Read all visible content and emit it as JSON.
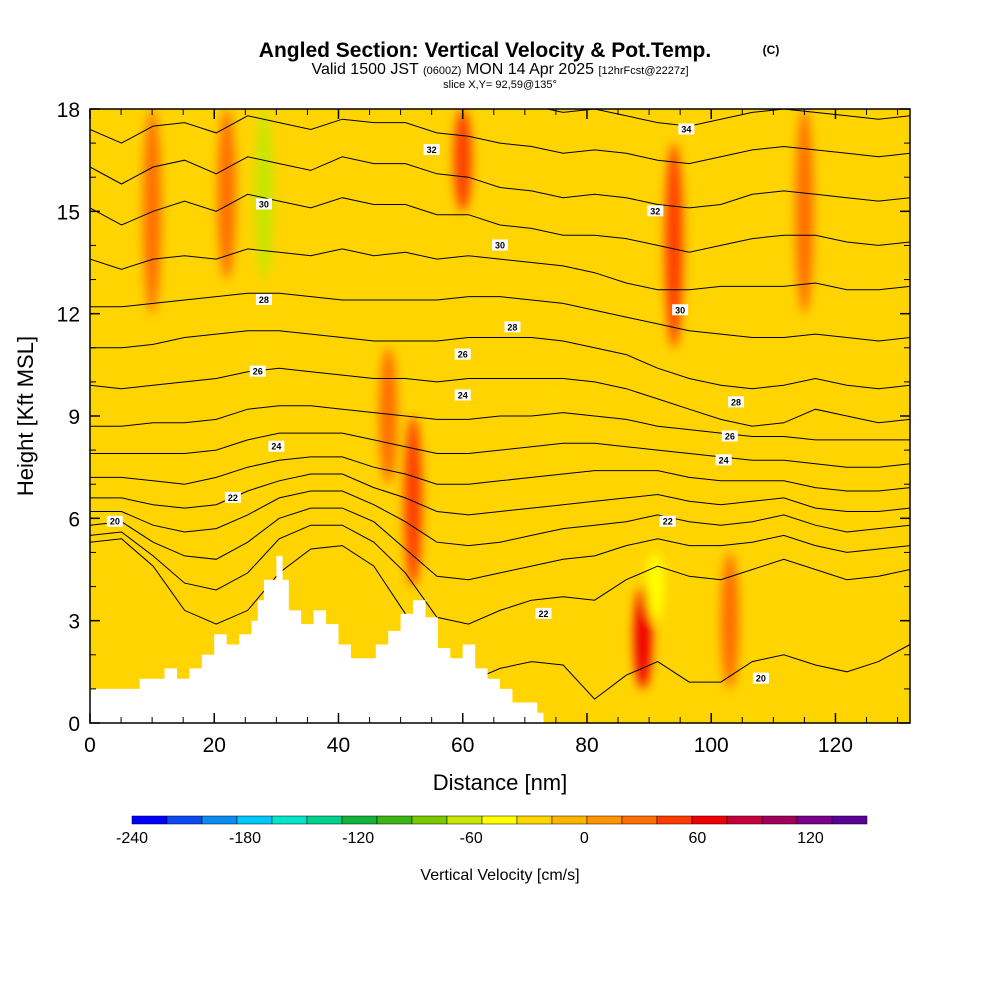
{
  "title": {
    "main": "Angled Section: Vertical Velocity & Pot.Temp.",
    "main_unit": "(C)",
    "valid_prefix": "Valid 1500 JST",
    "valid_utc": "(0600Z)",
    "valid_date": "MON 14 Apr 2025",
    "forecast": "[12hrFcst@2227z]",
    "slice": "slice X,Y= 92,59@135°"
  },
  "chart_data": {
    "type": "heatmap",
    "xlabel": "Distance [nm]",
    "ylabel": "Height [Kft MSL]",
    "xlim": [
      0,
      132
    ],
    "ylim": [
      0,
      18
    ],
    "x_ticks": [
      "0",
      "20",
      "40",
      "60",
      "80",
      "100",
      "120"
    ],
    "y_ticks": [
      "0",
      "3",
      "6",
      "9",
      "12",
      "15",
      "18"
    ],
    "colorbar": {
      "title": "Vertical Velocity [cm/s]",
      "range": [
        -240,
        150
      ],
      "step": 20,
      "tick_labels": [
        "-240",
        "-180",
        "-120",
        "-60",
        "0",
        "60",
        "120"
      ],
      "colors": [
        "#0000ff",
        "#0a4af5",
        "#0a8cf0",
        "#00c8ff",
        "#00e6c8",
        "#00d28c",
        "#14b43c",
        "#3cb414",
        "#78c800",
        "#c8e600",
        "#ffff00",
        "#ffd700",
        "#ffb400",
        "#ff9600",
        "#ff6e00",
        "#ff3c00",
        "#f00000",
        "#c8003c",
        "#a0005a",
        "#78008c",
        "#5a0096"
      ]
    },
    "velocity_bands": [
      {
        "x": 28,
        "value": -60,
        "kft_top": 18,
        "kft_bottom": 13
      },
      {
        "x": 27,
        "value": -20,
        "kft_top": 12,
        "kft_bottom": 5
      },
      {
        "x": 22,
        "value": 45,
        "kft_top": 18,
        "kft_bottom": 13
      },
      {
        "x": 52,
        "value": 75,
        "kft_top": 9,
        "kft_bottom": 4
      },
      {
        "x": 48,
        "value": 50,
        "kft_top": 11,
        "kft_bottom": 7
      },
      {
        "x": 60,
        "value": 60,
        "kft_top": 18,
        "kft_bottom": 15
      },
      {
        "x": 94,
        "value": 75,
        "kft_top": 17,
        "kft_bottom": 11
      },
      {
        "x": 89,
        "value": 90,
        "kft_top": 4,
        "kft_bottom": 1
      },
      {
        "x": 91,
        "value": -40,
        "kft_top": 5,
        "kft_bottom": 3
      },
      {
        "x": 10,
        "value": 40,
        "kft_top": 18,
        "kft_bottom": 12
      },
      {
        "x": 115,
        "value": 40,
        "kft_top": 18,
        "kft_bottom": 12
      },
      {
        "x": 75,
        "value": -20,
        "kft_top": 10,
        "kft_bottom": 7
      },
      {
        "x": 103,
        "value": 40,
        "kft_top": 5,
        "kft_bottom": 1
      }
    ],
    "terrain": {
      "x": [
        0,
        6,
        8,
        12,
        14,
        16,
        18,
        20,
        22,
        24,
        26,
        27,
        28,
        30,
        31,
        32,
        34,
        36,
        38,
        40,
        42,
        44,
        46,
        48,
        50,
        52,
        54,
        56,
        58,
        60,
        62,
        64,
        66,
        68,
        70,
        72,
        73
      ],
      "kft": [
        1.0,
        1.0,
        1.3,
        1.6,
        1.3,
        1.6,
        2.0,
        2.6,
        2.3,
        2.6,
        3.0,
        3.6,
        4.2,
        4.9,
        4.2,
        3.3,
        2.9,
        3.3,
        2.9,
        2.3,
        1.9,
        1.9,
        2.3,
        2.7,
        3.2,
        3.6,
        3.1,
        2.2,
        1.9,
        2.3,
        1.6,
        1.3,
        1.0,
        0.6,
        0.6,
        0.3,
        0.0
      ]
    },
    "isentropes": [
      {
        "value": "20",
        "kft": [
          5.3,
          5.4,
          4.6,
          3.3,
          2.9,
          3.3,
          4.4,
          5.1,
          5.2,
          4.6,
          3.2,
          1.6,
          1.2,
          1.6,
          1.8,
          1.7,
          0.7,
          1.4,
          1.8,
          1.2,
          1.2,
          1.8,
          2.0,
          1.7,
          1.5,
          1.8,
          2.3
        ]
      },
      {
        "value": "",
        "kft": [
          5.5,
          5.6,
          4.9,
          4.1,
          3.9,
          4.4,
          5.4,
          5.8,
          5.8,
          5.3,
          4.4,
          3.1,
          2.9,
          3.3,
          3.6,
          3.7,
          3.6,
          4.2,
          4.6,
          4.3,
          4.2,
          4.5,
          4.8,
          4.5,
          4.2,
          4.3,
          4.5
        ]
      },
      {
        "value": "",
        "kft": [
          5.8,
          5.9,
          5.3,
          4.9,
          4.8,
          5.3,
          6.0,
          6.3,
          6.3,
          5.9,
          5.1,
          4.3,
          4.2,
          4.4,
          4.6,
          4.8,
          4.9,
          5.2,
          5.4,
          5.2,
          5.2,
          5.3,
          5.5,
          5.2,
          5.0,
          5.1,
          5.2
        ]
      },
      {
        "value": "",
        "kft": [
          6.2,
          6.2,
          5.8,
          5.6,
          5.7,
          6.1,
          6.6,
          6.8,
          6.8,
          6.4,
          5.9,
          5.3,
          5.2,
          5.3,
          5.5,
          5.7,
          5.8,
          5.9,
          6.1,
          5.9,
          5.8,
          5.9,
          6.1,
          5.8,
          5.6,
          5.7,
          5.8
        ]
      },
      {
        "value": "22",
        "kft": [
          6.6,
          6.6,
          6.4,
          6.3,
          6.4,
          6.8,
          7.1,
          7.3,
          7.3,
          6.9,
          6.6,
          6.2,
          6.1,
          6.2,
          6.3,
          6.4,
          6.5,
          6.6,
          6.7,
          6.5,
          6.4,
          6.5,
          6.6,
          6.3,
          6.2,
          6.2,
          6.3
        ]
      },
      {
        "value": "",
        "kft": [
          7.2,
          7.2,
          7.1,
          7.0,
          7.2,
          7.5,
          7.7,
          7.8,
          7.8,
          7.5,
          7.3,
          7.0,
          7.0,
          7.1,
          7.2,
          7.3,
          7.4,
          7.4,
          7.4,
          7.2,
          7.1,
          7.1,
          7.1,
          6.9,
          6.8,
          6.8,
          6.9
        ]
      },
      {
        "value": "24",
        "kft": [
          7.9,
          7.9,
          7.9,
          7.9,
          8.0,
          8.3,
          8.5,
          8.5,
          8.5,
          8.3,
          8.1,
          7.9,
          7.9,
          8.0,
          8.1,
          8.2,
          8.2,
          8.1,
          8.0,
          7.9,
          7.8,
          7.7,
          7.7,
          7.6,
          7.5,
          7.5,
          7.6
        ]
      },
      {
        "value": "",
        "kft": [
          8.7,
          8.7,
          8.8,
          8.8,
          8.9,
          9.2,
          9.3,
          9.3,
          9.2,
          9.1,
          9.0,
          8.9,
          8.9,
          9.0,
          9.0,
          9.1,
          9.0,
          8.9,
          8.7,
          8.6,
          8.5,
          8.4,
          8.4,
          8.3,
          8.3,
          8.3,
          8.3
        ]
      },
      {
        "value": "26",
        "kft": [
          9.9,
          9.8,
          9.9,
          10.0,
          10.1,
          10.3,
          10.4,
          10.3,
          10.2,
          10.1,
          10.1,
          10.0,
          10.1,
          10.1,
          10.1,
          10.1,
          10.0,
          9.8,
          9.5,
          9.2,
          8.9,
          8.7,
          8.8,
          9.2,
          9.0,
          8.8,
          8.9
        ]
      },
      {
        "value": "",
        "kft": [
          11.0,
          11.0,
          11.1,
          11.3,
          11.4,
          11.5,
          11.5,
          11.4,
          11.3,
          11.2,
          11.2,
          11.2,
          11.3,
          11.3,
          11.3,
          11.2,
          11.0,
          10.8,
          10.4,
          10.1,
          9.9,
          9.8,
          9.9,
          10.1,
          9.9,
          9.8,
          9.9
        ]
      },
      {
        "value": "28",
        "kft": [
          12.2,
          12.2,
          12.3,
          12.4,
          12.5,
          12.6,
          12.6,
          12.5,
          12.4,
          12.4,
          12.4,
          12.4,
          12.5,
          12.5,
          12.4,
          12.3,
          12.1,
          11.9,
          11.7,
          11.5,
          11.4,
          11.3,
          11.3,
          11.4,
          11.3,
          11.2,
          11.3
        ]
      },
      {
        "value": "",
        "kft": [
          13.6,
          13.3,
          13.6,
          13.7,
          13.6,
          13.9,
          13.8,
          13.7,
          13.9,
          13.7,
          13.8,
          13.6,
          13.7,
          13.6,
          13.5,
          13.4,
          13.2,
          12.9,
          12.7,
          12.7,
          12.8,
          12.8,
          12.8,
          12.9,
          12.7,
          12.7,
          12.8
        ]
      },
      {
        "value": "30",
        "kft": [
          15.1,
          14.6,
          15.0,
          15.3,
          15.0,
          15.5,
          15.3,
          15.1,
          15.4,
          15.2,
          15.2,
          14.9,
          14.9,
          14.6,
          14.5,
          14.3,
          14.3,
          14.2,
          14.0,
          13.8,
          14.0,
          14.2,
          14.3,
          14.3,
          14.1,
          14.0,
          14.1
        ]
      },
      {
        "value": "",
        "kft": [
          16.3,
          15.8,
          16.3,
          16.5,
          16.1,
          16.6,
          16.4,
          16.2,
          16.6,
          16.4,
          16.4,
          16.1,
          16.0,
          15.7,
          15.6,
          15.4,
          15.5,
          15.4,
          15.2,
          15.1,
          15.2,
          15.5,
          15.6,
          15.5,
          15.4,
          15.3,
          15.4
        ]
      },
      {
        "value": "32",
        "kft": [
          17.4,
          17.0,
          17.5,
          17.6,
          17.3,
          17.8,
          17.6,
          17.4,
          17.7,
          17.6,
          17.6,
          17.3,
          17.2,
          17.0,
          16.9,
          16.7,
          16.8,
          16.7,
          16.5,
          16.4,
          16.6,
          16.8,
          16.9,
          16.8,
          16.7,
          16.6,
          16.7
        ]
      },
      {
        "value": "34",
        "kft": [
          18.6,
          18.2,
          18.6,
          18.7,
          18.4,
          18.9,
          18.7,
          18.6,
          18.9,
          18.7,
          18.7,
          18.4,
          18.4,
          18.2,
          18.1,
          17.9,
          18.0,
          17.8,
          17.6,
          17.5,
          17.7,
          17.9,
          18.0,
          17.9,
          17.8,
          17.7,
          17.8
        ]
      }
    ],
    "contour_labels": [
      {
        "text": "20",
        "x": 4,
        "kft": 5.9
      },
      {
        "text": "22",
        "x": 23,
        "kft": 6.6
      },
      {
        "text": "24",
        "x": 30,
        "kft": 8.1
      },
      {
        "text": "26",
        "x": 27,
        "kft": 10.3
      },
      {
        "text": "28",
        "x": 28,
        "kft": 12.4
      },
      {
        "text": "30",
        "x": 28,
        "kft": 15.2
      },
      {
        "text": "32",
        "x": 55,
        "kft": 16.8
      },
      {
        "text": "24",
        "x": 60,
        "kft": 9.6
      },
      {
        "text": "26",
        "x": 60,
        "kft": 10.8
      },
      {
        "text": "28",
        "x": 68,
        "kft": 11.6
      },
      {
        "text": "30",
        "x": 66,
        "kft": 14.0
      },
      {
        "text": "32",
        "x": 91,
        "kft": 15.0
      },
      {
        "text": "34",
        "x": 96,
        "kft": 17.4
      },
      {
        "text": "30",
        "x": 95,
        "kft": 12.1
      },
      {
        "text": "22",
        "x": 93,
        "kft": 5.9
      },
      {
        "text": "22",
        "x": 73,
        "kft": 3.2
      },
      {
        "text": "24",
        "x": 102,
        "kft": 7.7
      },
      {
        "text": "26",
        "x": 103,
        "kft": 8.4
      },
      {
        "text": "28",
        "x": 104,
        "kft": 9.4
      },
      {
        "text": "20",
        "x": 108,
        "kft": 1.3
      }
    ]
  }
}
